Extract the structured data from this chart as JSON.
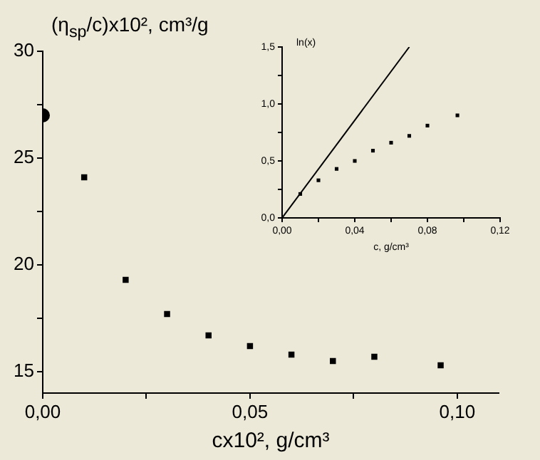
{
  "chart_data": [
    {
      "type": "scatter",
      "ylabel": "(η$_{sp}$/c)x10², cm³/g",
      "xlabel": "cx10², g/cm³",
      "xlim": [
        0,
        0.11
      ],
      "xticks": [
        {
          "value": 0,
          "label": "0,00"
        },
        {
          "value": 0.025,
          "label": null
        },
        {
          "value": 0.05,
          "label": "0,05"
        },
        {
          "value": 0.075,
          "label": null
        },
        {
          "value": 0.1,
          "label": "0,10"
        }
      ],
      "ylim": [
        14,
        30
      ],
      "yticks": [
        15,
        {
          "value": 17.5,
          "label": null
        },
        20,
        {
          "value": 22.5,
          "label": null
        },
        25,
        {
          "value": 27.5,
          "label": null
        },
        30
      ],
      "grid": false,
      "legend": false,
      "series": [
        {
          "type": "scatter",
          "marker": "circle",
          "color": "#000000",
          "x": [
            0
          ],
          "values": [
            27
          ]
        },
        {
          "type": "scatter",
          "marker": "square",
          "color": "#000000",
          "x": [
            0.01,
            0.02,
            0.03,
            0.04,
            0.05,
            0.06,
            0.07,
            0.08,
            0.096
          ],
          "values": [
            24.1,
            19.3,
            17.7,
            16.7,
            16.2,
            15.8,
            15.5,
            15.7,
            15.3
          ]
        }
      ]
    },
    {
      "type": "scatter",
      "ylabel": "ln(x)",
      "xlabel": "c, g/cm³",
      "xlim": [
        0,
        0.12
      ],
      "xticks": [
        {
          "value": 0,
          "label": "0,00"
        },
        {
          "value": 0.02,
          "label": null
        },
        {
          "value": 0.04,
          "label": "0,04"
        },
        {
          "value": 0.06,
          "label": null
        },
        {
          "value": 0.08,
          "label": "0,08"
        },
        {
          "value": 0.1,
          "label": null
        },
        {
          "value": 0.12,
          "label": "0,12"
        }
      ],
      "ylim": [
        0,
        1.5
      ],
      "yticks": [
        {
          "value": 0,
          "label": "0,0"
        },
        {
          "value": 0.25,
          "label": null
        },
        {
          "value": 0.5,
          "label": "0,5"
        },
        {
          "value": 0.75,
          "label": null
        },
        {
          "value": 1,
          "label": "1,0"
        },
        {
          "value": 1.25,
          "label": null
        },
        {
          "value": 1.5,
          "label": "1,5"
        }
      ],
      "grid": false,
      "legend": false,
      "series": [
        {
          "type": "scatter",
          "marker": "square",
          "color": "#000000",
          "x": [
            0.01,
            0.02,
            0.03,
            0.04,
            0.05,
            0.06,
            0.07,
            0.08,
            0.0965
          ],
          "values": [
            0.21,
            0.33,
            0.43,
            0.5,
            0.59,
            0.66,
            0.72,
            0.81,
            0.9
          ]
        },
        {
          "type": "line",
          "marker": "none",
          "line_style": "solid",
          "color": "#000000",
          "x": [
            0,
            0.07
          ],
          "values": [
            0,
            1.5
          ]
        }
      ]
    }
  ]
}
